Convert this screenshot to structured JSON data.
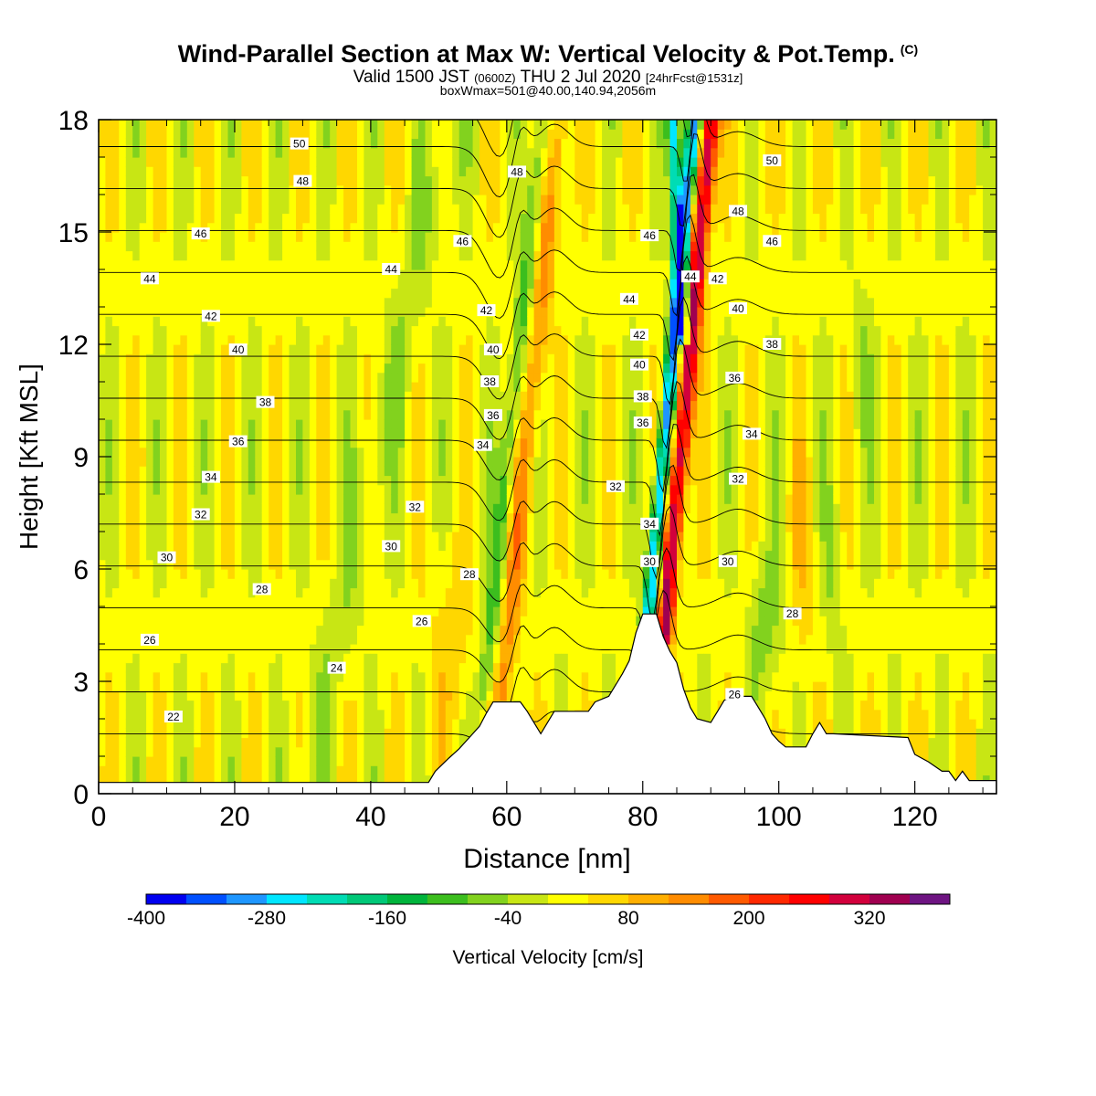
{
  "header": {
    "title": "Wind-Parallel Section at Max W: Vertical Velocity & Pot.Temp.",
    "copyright": "(C)",
    "valid_main": "Valid 1500 JST",
    "valid_z": "(0600Z)",
    "valid_date": "THU 2 Jul 2020",
    "forecast": "[24hrFcst@1531z]",
    "boxwmax": "boxWmax=501@40.00,140.94,2056m"
  },
  "chart_data": {
    "type": "heatmap",
    "title": "Wind-Parallel Section at Max W: Vertical Velocity & Pot.Temp.",
    "xlabel": "Distance [nm]",
    "ylabel": "Height [Kft MSL]",
    "xlim": [
      0,
      132
    ],
    "ylim": [
      0,
      18
    ],
    "x_ticks": [
      0,
      20,
      40,
      60,
      80,
      100,
      120
    ],
    "y_ticks": [
      0,
      3,
      6,
      9,
      12,
      15,
      18
    ],
    "colorbar": {
      "title": "Vertical Velocity [cm/s]",
      "tick_labels": [
        "-400",
        "-280",
        "-160",
        "-40",
        "80",
        "200",
        "320"
      ],
      "tick_values": [
        -400,
        -280,
        -160,
        -40,
        80,
        200,
        320
      ],
      "levels": [
        -400,
        -360,
        -320,
        -280,
        -240,
        -200,
        -160,
        -120,
        -80,
        -40,
        0,
        40,
        80,
        120,
        160,
        200,
        240,
        280,
        320,
        360,
        400
      ],
      "colors": [
        "#0000f0",
        "#0050ff",
        "#1e96ff",
        "#00e6ff",
        "#00dcb4",
        "#00c878",
        "#00b43c",
        "#3cbe1e",
        "#82d21e",
        "#c8e614",
        "#ffff00",
        "#ffd700",
        "#ffaf00",
        "#ff8c00",
        "#ff5a00",
        "#ff2800",
        "#ff0000",
        "#d2003c",
        "#a00050",
        "#6e1482"
      ]
    },
    "isentropes_theta_C": [
      22,
      24,
      26,
      28,
      30,
      32,
      34,
      36,
      38,
      40,
      42,
      44,
      46,
      48,
      50
    ],
    "contour_labels": [
      {
        "v": "50",
        "x": 29.5,
        "y": 17.35
      },
      {
        "v": "48",
        "x": 30.0,
        "y": 16.35
      },
      {
        "v": "46",
        "x": 15.0,
        "y": 14.95
      },
      {
        "v": "44",
        "x": 7.5,
        "y": 13.75
      },
      {
        "v": "42",
        "x": 16.5,
        "y": 12.75
      },
      {
        "v": "40",
        "x": 20.5,
        "y": 11.85
      },
      {
        "v": "38",
        "x": 24.5,
        "y": 10.45
      },
      {
        "v": "36",
        "x": 20.5,
        "y": 9.4
      },
      {
        "v": "34",
        "x": 16.5,
        "y": 8.45
      },
      {
        "v": "32",
        "x": 15.0,
        "y": 7.45
      },
      {
        "v": "30",
        "x": 10.0,
        "y": 6.3
      },
      {
        "v": "28",
        "x": 24.0,
        "y": 5.45
      },
      {
        "v": "26",
        "x": 7.5,
        "y": 4.1
      },
      {
        "v": "24",
        "x": 35.0,
        "y": 3.35
      },
      {
        "v": "22",
        "x": 11.0,
        "y": 2.05
      },
      {
        "v": "48",
        "x": 61.5,
        "y": 16.6
      },
      {
        "v": "46",
        "x": 53.5,
        "y": 14.75
      },
      {
        "v": "44",
        "x": 43.0,
        "y": 14.0
      },
      {
        "v": "42",
        "x": 57.0,
        "y": 12.9
      },
      {
        "v": "40",
        "x": 58.0,
        "y": 11.85
      },
      {
        "v": "38",
        "x": 57.5,
        "y": 11.0
      },
      {
        "v": "36",
        "x": 58.0,
        "y": 10.1
      },
      {
        "v": "34",
        "x": 56.5,
        "y": 9.3
      },
      {
        "v": "32",
        "x": 46.5,
        "y": 7.65
      },
      {
        "v": "30",
        "x": 43.0,
        "y": 6.6
      },
      {
        "v": "28",
        "x": 54.5,
        "y": 5.85
      },
      {
        "v": "26",
        "x": 47.5,
        "y": 4.6
      },
      {
        "v": "32",
        "x": 76.0,
        "y": 8.2
      },
      {
        "v": "46",
        "x": 81.0,
        "y": 14.9
      },
      {
        "v": "44",
        "x": 78.0,
        "y": 13.2
      },
      {
        "v": "42",
        "x": 79.5,
        "y": 12.25
      },
      {
        "v": "40",
        "x": 79.5,
        "y": 11.45
      },
      {
        "v": "38",
        "x": 80.0,
        "y": 10.6
      },
      {
        "v": "36",
        "x": 80.0,
        "y": 9.9
      },
      {
        "v": "34",
        "x": 81.0,
        "y": 7.2
      },
      {
        "v": "30",
        "x": 81.0,
        "y": 6.2
      },
      {
        "v": "50",
        "x": 99.0,
        "y": 16.9
      },
      {
        "v": "48",
        "x": 94.0,
        "y": 15.55
      },
      {
        "v": "46",
        "x": 99.0,
        "y": 14.75
      },
      {
        "v": "44",
        "x": 87.0,
        "y": 13.8
      },
      {
        "v": "42",
        "x": 91.0,
        "y": 13.75
      },
      {
        "v": "40",
        "x": 94.0,
        "y": 12.95
      },
      {
        "v": "38",
        "x": 99.0,
        "y": 12.0
      },
      {
        "v": "36",
        "x": 93.5,
        "y": 11.1
      },
      {
        "v": "34",
        "x": 96.0,
        "y": 9.6
      },
      {
        "v": "32",
        "x": 94.0,
        "y": 8.4
      },
      {
        "v": "30",
        "x": 92.5,
        "y": 6.2
      },
      {
        "v": "28",
        "x": 102.0,
        "y": 4.8
      },
      {
        "v": "26",
        "x": 93.5,
        "y": 2.65
      }
    ],
    "terrain_kft": [
      [
        0,
        0.3
      ],
      [
        48.5,
        0.3
      ],
      [
        49.5,
        0.6
      ],
      [
        51.5,
        0.95
      ],
      [
        53,
        1.2
      ],
      [
        54.5,
        1.5
      ],
      [
        56,
        1.8
      ],
      [
        57,
        2.15
      ],
      [
        58,
        2.45
      ],
      [
        62,
        2.45
      ],
      [
        63,
        2.2
      ],
      [
        64,
        1.9
      ],
      [
        65,
        1.6
      ],
      [
        66,
        1.9
      ],
      [
        67,
        2.2
      ],
      [
        72,
        2.2
      ],
      [
        73,
        2.45
      ],
      [
        75,
        2.6
      ],
      [
        76,
        2.9
      ],
      [
        77,
        3.2
      ],
      [
        78,
        3.55
      ],
      [
        79,
        4.3
      ],
      [
        80,
        4.8
      ],
      [
        82,
        4.8
      ],
      [
        83,
        4.2
      ],
      [
        84,
        3.8
      ],
      [
        85,
        3.5
      ],
      [
        86,
        2.8
      ],
      [
        87,
        2.3
      ],
      [
        88,
        2.0
      ],
      [
        90,
        1.9
      ],
      [
        91,
        2.2
      ],
      [
        92,
        2.5
      ],
      [
        94,
        2.6
      ],
      [
        96,
        2.6
      ],
      [
        97,
        2.3
      ],
      [
        98,
        2.0
      ],
      [
        99,
        1.6
      ],
      [
        100,
        1.4
      ],
      [
        101,
        1.25
      ],
      [
        104,
        1.25
      ],
      [
        105,
        1.6
      ],
      [
        106,
        1.9
      ],
      [
        107,
        1.6
      ],
      [
        108,
        1.6
      ],
      [
        119,
        1.5
      ],
      [
        120,
        1.05
      ],
      [
        122,
        0.85
      ],
      [
        124,
        0.6
      ],
      [
        125,
        0.6
      ],
      [
        126,
        0.35
      ],
      [
        127,
        0.6
      ],
      [
        128,
        0.35
      ],
      [
        132,
        0.35
      ]
    ]
  },
  "colorbar_title": "Vertical Velocity [cm/s]"
}
